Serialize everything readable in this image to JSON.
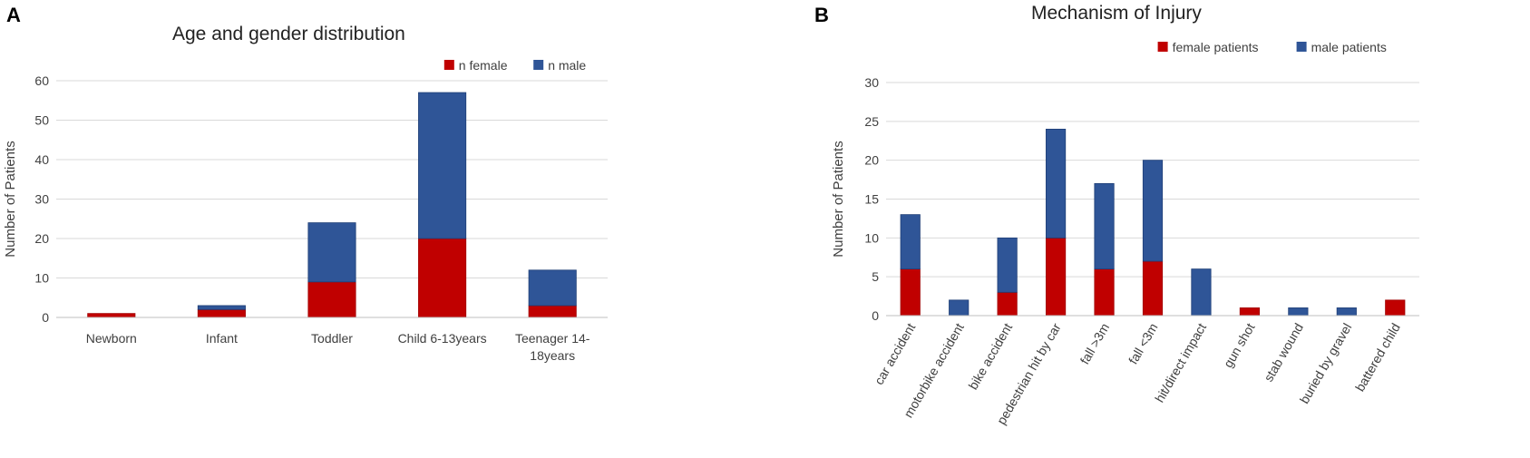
{
  "figure": {
    "panel_a_letter": "A",
    "panel_b_letter": "B"
  },
  "chart_data": [
    {
      "type": "bar",
      "stacked": true,
      "title": "Age and gender distribution",
      "xlabel": "",
      "ylabel": "Number of Patients",
      "categories": [
        "Newborn",
        "Infant",
        "Toddler",
        "Child 6-13years",
        "Teenager 14-18years"
      ],
      "category_label_lines": [
        [
          "Newborn"
        ],
        [
          "Infant"
        ],
        [
          "Toddler"
        ],
        [
          "Child 6-13years"
        ],
        [
          "Teenager 14-",
          "18years"
        ]
      ],
      "series": [
        {
          "name": "n female",
          "color": "#C00000",
          "values": [
            1,
            2,
            9,
            20,
            3
          ]
        },
        {
          "name": "n male",
          "color": "#2F5597",
          "values": [
            0,
            1,
            15,
            37,
            9
          ]
        }
      ],
      "ylim": [
        0,
        60
      ],
      "yticks": [
        0,
        10,
        20,
        30,
        40,
        50,
        60
      ],
      "grid": true,
      "legend": "top-right"
    },
    {
      "type": "bar",
      "stacked": true,
      "title": "Mechanism of Injury",
      "xlabel": "",
      "ylabel": "Number of Patients",
      "categories": [
        "car accident",
        "motorbike accident",
        "bike accident",
        "pedestrian hit by car",
        "fall >3m",
        "fall <3m",
        "hit/direct impact",
        "gun shot",
        "stab wound",
        "buried by gravel",
        "battered child"
      ],
      "series": [
        {
          "name": "female patients",
          "color": "#C00000",
          "values": [
            6,
            0,
            3,
            10,
            6,
            7,
            0,
            1,
            0,
            0,
            2
          ]
        },
        {
          "name": "male patients",
          "color": "#2F5597",
          "values": [
            7,
            2,
            7,
            14,
            11,
            13,
            6,
            0,
            1,
            1,
            0
          ]
        }
      ],
      "ylim": [
        0,
        30
      ],
      "yticks": [
        0,
        5,
        10,
        15,
        20,
        25,
        30
      ],
      "grid": true,
      "legend": "top-right"
    }
  ]
}
